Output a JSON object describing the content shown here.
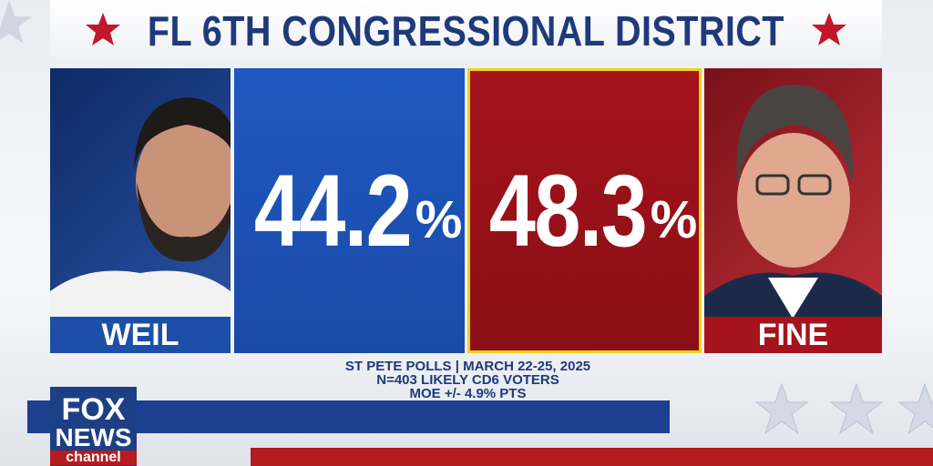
{
  "header": {
    "title": "FL 6TH CONGRESSIONAL DISTRICT"
  },
  "candidates": [
    {
      "name": "WEIL",
      "percent": 44.2,
      "unit": "%"
    },
    {
      "name": "FINE",
      "percent": 48.3,
      "unit": "%"
    }
  ],
  "footer": {
    "lines": [
      "ST PETE POLLS | MARCH 22-25, 2025",
      "N=403 LIKELY CD6 VOTERS",
      "MOE +/- 4.9% PTS"
    ]
  },
  "logo": {
    "line1": "FOX",
    "line2": "NEWS",
    "line3": "channel"
  }
}
